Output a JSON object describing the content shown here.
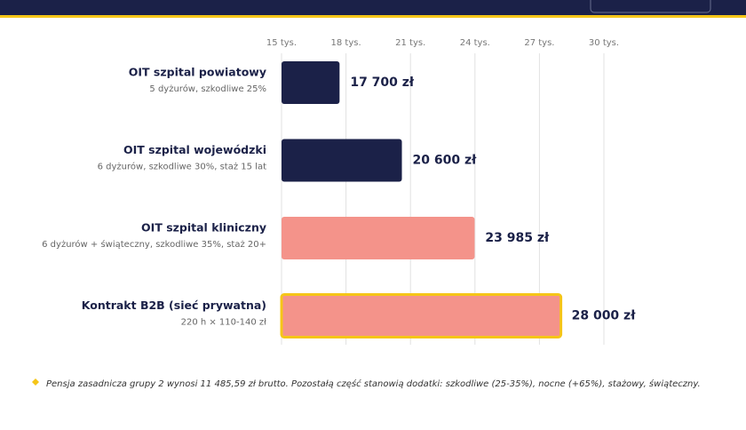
{
  "chart_data": {
    "type": "hbar",
    "categories": [
      "OIT szpital powiatowy",
      "OIT szpital wojewódzki",
      "OIT szpital kliniczny",
      "Kontrakt B2B (sieć prywatna)"
    ],
    "category_notes": [
      "5 dyżurów, szkodliwe 25%",
      "6 dyżurów, szkodliwe 30%, staż 15 lat",
      "6 dyżurów + świąteczny, szkodliwe 35%, staż 20+",
      "220 h × 110-140 zł"
    ],
    "values": [
      17700,
      20600,
      23985,
      28000
    ],
    "value_labels": [
      "17 700 zł",
      "20 600 zł",
      "23 985 zł",
      "28 000 zł"
    ],
    "colors": [
      "#1b2148",
      "#1b2148",
      "#f4938a",
      "#f4938a"
    ],
    "highlight": [
      false,
      false,
      false,
      true
    ],
    "highlight_color": "#f5c518",
    "xlim": [
      15000,
      30000
    ],
    "xticks": [
      {
        "value": 15000,
        "label": "15 tys."
      },
      {
        "value": 18000,
        "label": "18 tys."
      },
      {
        "value": 21000,
        "label": "21 tys."
      },
      {
        "value": 24000,
        "label": "24 tys."
      },
      {
        "value": 27000,
        "label": "27 tys."
      },
      {
        "value": 30000,
        "label": "30 tys."
      }
    ],
    "grid": true,
    "note": "Pensja zasadnicza grupy 2 wynosi 11 485,59 zł brutto. Pozostałą część stanowią dodatki: szkodliwe (25-35%), nocne (+65%), stażowy, świąteczny."
  }
}
